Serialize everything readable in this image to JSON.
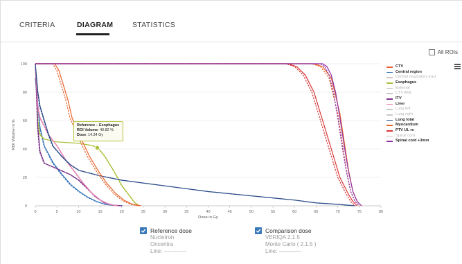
{
  "tabs": [
    {
      "label": "CRITERIA",
      "active": false
    },
    {
      "label": "DIAGRAM",
      "active": true
    },
    {
      "label": "STATISTICS",
      "active": false
    }
  ],
  "all_rois": {
    "label": "All ROIs",
    "checked": false
  },
  "icons": {
    "menu": "hamburger-menu-icon",
    "checkbox": "checkmark-icon"
  },
  "tooltip": {
    "title": "Reference – Esophagus",
    "volume_label": "ROI Volume",
    "volume_value": ": 40.82 %",
    "dose_label": "Dose",
    "dose_value": ": 14.34 Gy"
  },
  "bottom": {
    "reference": {
      "label": "Reference dose",
      "checked": true,
      "vendor": "Nucletron",
      "system": "Oncentra",
      "line": "Line: ------------"
    },
    "comparison": {
      "label": "Comparison dose",
      "checked": true,
      "vendor": "VERIQA 2.1.5",
      "system": "Monte Carlo ( 2.1.5 )",
      "line": "Line: ————"
    }
  },
  "chart_data": {
    "type": "line",
    "xlabel": "Dose in Gy",
    "ylabel": "ROI Volume in %",
    "xlim": [
      0,
      80
    ],
    "ylim": [
      0,
      100
    ],
    "xticks": [
      0,
      5,
      10,
      15,
      20,
      25,
      30,
      35,
      40,
      45,
      50,
      55,
      60,
      65,
      70,
      75,
      80
    ],
    "yticks": [
      0,
      20,
      40,
      60,
      80,
      100
    ],
    "grid": "horizontal",
    "legend_position": "right",
    "series": [
      {
        "name": "CTV",
        "visible": true,
        "color": "#e8632b",
        "ref": [
          [
            0,
            100
          ],
          [
            64,
            100
          ],
          [
            66,
            98
          ],
          [
            68,
            90
          ],
          [
            70,
            65
          ],
          [
            71,
            45
          ],
          [
            72,
            25
          ],
          [
            73,
            10
          ],
          [
            74,
            3
          ],
          [
            75,
            0
          ]
        ],
        "cmp": [
          [
            0,
            100
          ],
          [
            64.5,
            100
          ],
          [
            66.5,
            98
          ],
          [
            68.5,
            90
          ],
          [
            70.5,
            65
          ],
          [
            71.5,
            45
          ],
          [
            72.5,
            25
          ],
          [
            73.5,
            10
          ],
          [
            74.5,
            3
          ],
          [
            75.5,
            0
          ]
        ]
      },
      {
        "name": "Central region",
        "visible": true,
        "color": "#3b78b8",
        "ref": [
          [
            0,
            90
          ],
          [
            1,
            55
          ],
          [
            2,
            42
          ],
          [
            4,
            30
          ],
          [
            6,
            22
          ],
          [
            8,
            15
          ],
          [
            10,
            10
          ],
          [
            12,
            6
          ],
          [
            14,
            3
          ],
          [
            16,
            1
          ],
          [
            18,
            0.3
          ],
          [
            20,
            0
          ]
        ],
        "cmp": [
          [
            0,
            90
          ],
          [
            1.1,
            55
          ],
          [
            2.1,
            42
          ],
          [
            4.2,
            30
          ],
          [
            6.2,
            22
          ],
          [
            8.2,
            15
          ],
          [
            10.2,
            10
          ],
          [
            12.2,
            6
          ],
          [
            14.2,
            3
          ],
          [
            16.2,
            1
          ],
          [
            18.2,
            0.3
          ],
          [
            20.2,
            0
          ]
        ]
      },
      {
        "name": "Central respiratory tract",
        "visible": false,
        "color": "#b4b4b4"
      },
      {
        "name": "Esophagus",
        "visible": true,
        "color": "#adc03a",
        "ref": [
          [
            0,
            100
          ],
          [
            0.5,
            60
          ],
          [
            1,
            50
          ],
          [
            2,
            47
          ],
          [
            5,
            45
          ],
          [
            10,
            44
          ],
          [
            13,
            42.5
          ],
          [
            14.34,
            40.82
          ],
          [
            16,
            35
          ],
          [
            18,
            25
          ],
          [
            20,
            14
          ],
          [
            22,
            6
          ],
          [
            23,
            2
          ],
          [
            24,
            0
          ]
        ],
        "cmp": [
          [
            0,
            100
          ],
          [
            0.6,
            60
          ],
          [
            1.1,
            50
          ],
          [
            2.1,
            47
          ],
          [
            5.1,
            45
          ],
          [
            10.1,
            44
          ],
          [
            13.1,
            42.5
          ],
          [
            14.5,
            40.82
          ],
          [
            16.1,
            35
          ],
          [
            18.1,
            25
          ],
          [
            20.1,
            14
          ],
          [
            22.1,
            6
          ],
          [
            23.1,
            2
          ],
          [
            24.2,
            0
          ]
        ]
      },
      {
        "name": "External",
        "visible": false,
        "color": "#b4b4b4"
      },
      {
        "name": "CTV AML",
        "visible": false,
        "color": "#b4b4b4"
      },
      {
        "name": "ITV",
        "visible": true,
        "color": "#7a2f8a",
        "ref": [
          [
            0,
            100
          ],
          [
            0.5,
            55
          ],
          [
            1,
            38
          ],
          [
            2,
            30
          ],
          [
            5,
            26
          ],
          [
            8,
            22
          ],
          [
            10,
            18
          ],
          [
            12,
            12
          ],
          [
            14,
            6
          ],
          [
            16,
            2
          ],
          [
            18,
            0.5
          ],
          [
            20,
            0
          ]
        ],
        "cmp": [
          [
            0,
            100
          ],
          [
            0.6,
            55
          ],
          [
            1.1,
            38
          ],
          [
            2.1,
            30
          ],
          [
            5.1,
            26
          ],
          [
            8.1,
            22
          ],
          [
            10.1,
            18
          ],
          [
            12.1,
            12
          ],
          [
            14.1,
            6
          ],
          [
            16.1,
            2
          ],
          [
            18.1,
            0.5
          ],
          [
            20.1,
            0
          ]
        ]
      },
      {
        "name": "Liver",
        "visible": true,
        "color": "#e77fb1",
        "ref": [
          [
            0,
            100
          ],
          [
            0.5,
            70
          ],
          [
            1,
            62
          ],
          [
            3,
            50
          ],
          [
            5,
            42
          ],
          [
            7,
            32
          ],
          [
            9,
            24
          ],
          [
            11,
            16
          ],
          [
            13,
            9
          ],
          [
            15,
            4
          ],
          [
            17,
            1
          ],
          [
            19,
            0
          ]
        ],
        "cmp": [
          [
            0,
            100
          ],
          [
            0.6,
            70
          ],
          [
            1.1,
            62
          ],
          [
            3.1,
            50
          ],
          [
            5.1,
            42
          ],
          [
            7.1,
            32
          ],
          [
            9.1,
            24
          ],
          [
            11.1,
            16
          ],
          [
            13.1,
            9
          ],
          [
            15.1,
            4
          ],
          [
            17.1,
            1
          ],
          [
            19.1,
            0
          ]
        ]
      },
      {
        "name": "Lung left",
        "visible": false,
        "color": "#b4b4b4"
      },
      {
        "name": "Lung right",
        "visible": false,
        "color": "#b4b4b4"
      },
      {
        "name": "Lung total",
        "visible": true,
        "color": "#2c4c8a",
        "ref": [
          [
            0,
            100
          ],
          [
            0.5,
            80
          ],
          [
            1,
            70
          ],
          [
            2,
            60
          ],
          [
            3,
            50
          ],
          [
            4,
            42
          ],
          [
            6,
            35
          ],
          [
            8,
            29
          ],
          [
            10,
            25
          ],
          [
            15,
            21
          ],
          [
            20,
            18
          ],
          [
            30,
            14
          ],
          [
            40,
            10
          ],
          [
            50,
            7
          ],
          [
            60,
            4
          ],
          [
            65,
            2
          ],
          [
            70,
            1
          ],
          [
            72,
            0.5
          ],
          [
            74,
            0
          ]
        ],
        "cmp": [
          [
            0,
            100
          ],
          [
            0.6,
            80
          ],
          [
            1.1,
            70
          ],
          [
            2.1,
            60
          ],
          [
            3.1,
            50
          ],
          [
            4.1,
            42
          ],
          [
            6.1,
            35
          ],
          [
            8.1,
            29
          ],
          [
            10.1,
            25
          ],
          [
            15.1,
            21
          ],
          [
            20.1,
            18
          ],
          [
            30.1,
            14
          ],
          [
            40.1,
            10
          ],
          [
            50.1,
            7
          ],
          [
            60.1,
            4
          ],
          [
            65.1,
            2
          ],
          [
            70.1,
            1
          ],
          [
            72.1,
            0.5
          ],
          [
            74.1,
            0
          ]
        ]
      },
      {
        "name": "Myocardium",
        "visible": true,
        "color": "#e8632b",
        "ref": [
          [
            0,
            100
          ],
          [
            4,
            100
          ],
          [
            5,
            95
          ],
          [
            6,
            85
          ],
          [
            7,
            75
          ],
          [
            8,
            62
          ],
          [
            10,
            48
          ],
          [
            12,
            35
          ],
          [
            14,
            25
          ],
          [
            16,
            16
          ],
          [
            18,
            9
          ],
          [
            20,
            4
          ],
          [
            22,
            1
          ],
          [
            24,
            0
          ]
        ],
        "cmp": [
          [
            0,
            100
          ],
          [
            4.5,
            100
          ],
          [
            5.5,
            95
          ],
          [
            6.5,
            85
          ],
          [
            7.5,
            75
          ],
          [
            8.5,
            62
          ],
          [
            10.5,
            48
          ],
          [
            12.5,
            35
          ],
          [
            14.5,
            25
          ],
          [
            16.5,
            16
          ],
          [
            18.5,
            9
          ],
          [
            20.5,
            4
          ],
          [
            22.5,
            1
          ],
          [
            24.5,
            0
          ]
        ]
      },
      {
        "name": "PTV UL re",
        "visible": true,
        "color": "#d93434",
        "ref": [
          [
            0,
            100
          ],
          [
            58,
            100
          ],
          [
            60,
            98
          ],
          [
            62,
            92
          ],
          [
            64,
            80
          ],
          [
            66,
            60
          ],
          [
            68,
            40
          ],
          [
            70,
            20
          ],
          [
            72,
            8
          ],
          [
            73,
            3
          ],
          [
            74,
            0
          ]
        ],
        "cmp": [
          [
            0,
            100
          ],
          [
            58.5,
            100
          ],
          [
            60.5,
            98
          ],
          [
            62.5,
            92
          ],
          [
            64.5,
            80
          ],
          [
            66.5,
            60
          ],
          [
            68.5,
            40
          ],
          [
            70.5,
            20
          ],
          [
            72.5,
            8
          ],
          [
            73.5,
            3
          ],
          [
            74.5,
            0
          ]
        ]
      },
      {
        "name": "Spinal cord",
        "visible": false,
        "color": "#b4b4b4"
      },
      {
        "name": "Spinal cord +3mm",
        "visible": true,
        "color": "#8d32a8",
        "ref": [
          [
            0,
            100
          ],
          [
            66,
            100
          ],
          [
            67,
            98
          ],
          [
            68,
            92
          ],
          [
            69,
            80
          ],
          [
            70,
            62
          ],
          [
            71,
            42
          ],
          [
            72,
            24
          ],
          [
            73,
            10
          ],
          [
            74,
            3
          ],
          [
            75,
            0
          ]
        ],
        "cmp": [
          [
            0,
            100
          ],
          [
            66.5,
            100
          ],
          [
            67.5,
            98
          ],
          [
            68.5,
            92
          ],
          [
            69.5,
            80
          ],
          [
            70.5,
            62
          ],
          [
            71.5,
            42
          ],
          [
            72.5,
            24
          ],
          [
            73.5,
            10
          ],
          [
            74.5,
            3
          ],
          [
            75.5,
            0
          ]
        ]
      }
    ],
    "highlight": {
      "series": "Esophagus",
      "x": 14.34,
      "y": 40.82
    }
  }
}
